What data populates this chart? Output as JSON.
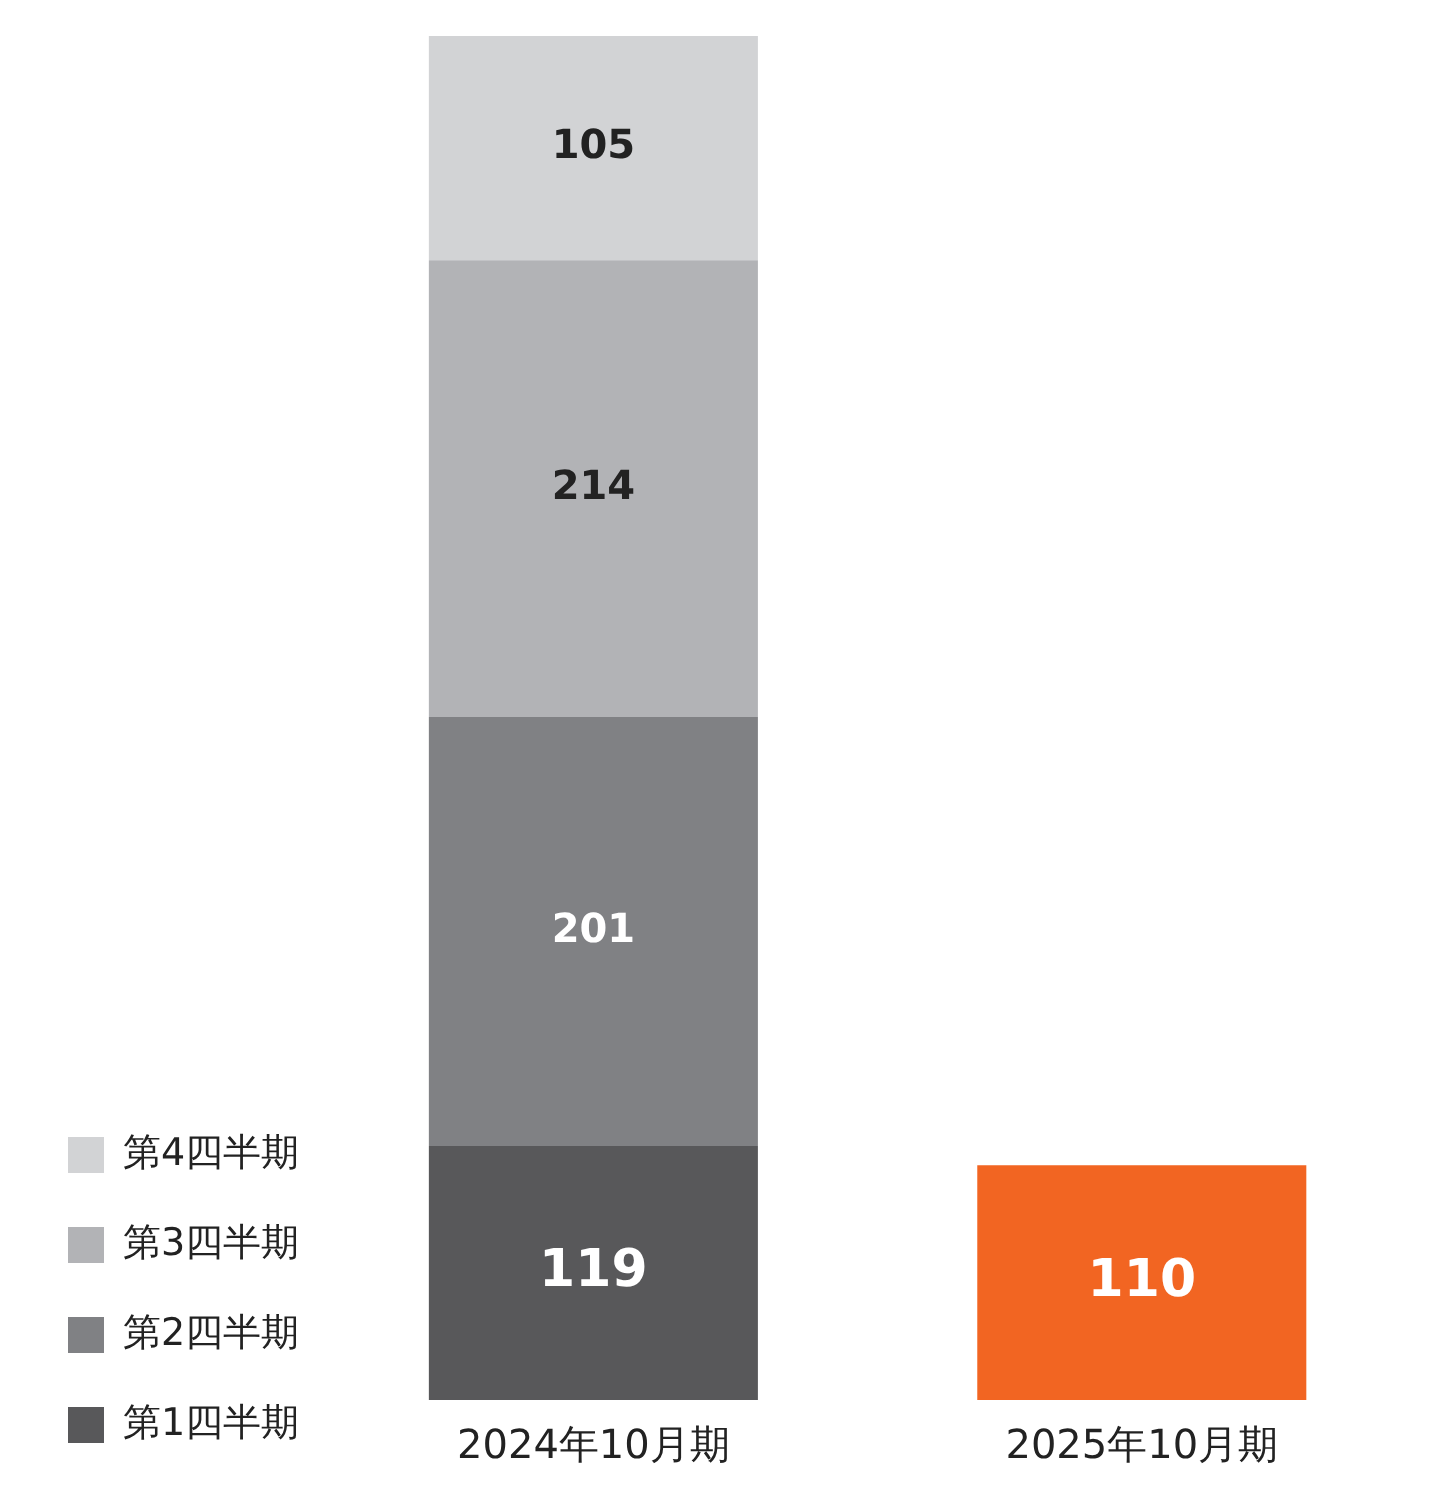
{
  "chart_data": {
    "type": "bar",
    "stacked": true,
    "categories": [
      "2024年10月期",
      "2025年10月期"
    ],
    "series": [
      {
        "name": "第1四半期",
        "color": "#58585a",
        "colors": [
          "#58585a",
          "#f26522"
        ],
        "values": [
          119,
          110
        ]
      },
      {
        "name": "第2四半期",
        "color": "#808184",
        "values": [
          201,
          null
        ]
      },
      {
        "name": "第3四半期",
        "color": "#b2b3b6",
        "values": [
          214,
          null
        ]
      },
      {
        "name": "第4四半期",
        "color": "#d2d3d5",
        "values": [
          105,
          null
        ]
      }
    ],
    "data_labels": true,
    "legend": "bottom left",
    "grid": false
  }
}
